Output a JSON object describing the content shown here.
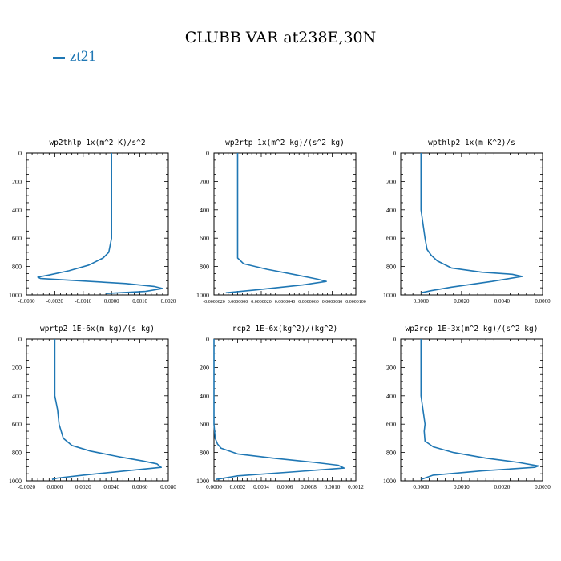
{
  "title": "CLUBB VAR at238E,30N",
  "legend": {
    "label": "zt21",
    "color": "#1f77b4"
  },
  "chart_data": [
    {
      "type": "line",
      "title": "wp2thlp  1x(m^2 K)/s^2",
      "xlim": [
        -0.003,
        0.002
      ],
      "ylim": [
        1000,
        0
      ],
      "xticks": [
        -0.003,
        -0.002,
        -0.001,
        0.0,
        0.001,
        0.002
      ],
      "xticklabels": [
        "-0.0030",
        "-0.0020",
        "-0.0010",
        "0.0000",
        "0.0010",
        "0.0020"
      ],
      "yticks": [
        0,
        200,
        400,
        600,
        800,
        1000
      ],
      "yticklabels": [
        "0",
        "200",
        "400",
        "600",
        "800",
        "1000"
      ],
      "series": [
        {
          "name": "zt21",
          "x": [
            0.0,
            0.0,
            0.0,
            0.0,
            0.0,
            -0.0001,
            -0.0003,
            -0.0008,
            -0.0015,
            -0.0022,
            -0.0026,
            -0.0025,
            0.0005,
            0.0015,
            0.0018,
            0.0012,
            -0.0002
          ],
          "y": [
            0,
            200,
            400,
            500,
            600,
            700,
            740,
            790,
            830,
            860,
            875,
            885,
            920,
            940,
            955,
            975,
            990
          ]
        }
      ]
    },
    {
      "type": "line",
      "title": "wp2rtp  1x(m^2 kg)/(s^2 kg)",
      "xlim": [
        -2e-06,
        1e-05
      ],
      "ylim": [
        1000,
        0
      ],
      "xticks": [
        -2e-06,
        0.0,
        2e-06,
        4e-06,
        6e-06,
        8e-06,
        1e-05
      ],
      "xticklabels": [
        "-0.0000020",
        "0.0000000",
        "0.0000020",
        "0.0000040",
        "0.0000060",
        "0.0000080",
        "0.0000100"
      ],
      "yticks": [
        0,
        200,
        400,
        600,
        800,
        1000
      ],
      "yticklabels": [
        "0",
        "200",
        "400",
        "600",
        "800",
        "1000"
      ],
      "series": [
        {
          "name": "zt21",
          "x": [
            0.0,
            0.0,
            0.0,
            0.0,
            0.0,
            0.0,
            5e-07,
            2.5e-06,
            5e-06,
            6.8e-06,
            7.5e-06,
            5.5e-06,
            1.5e-06,
            -1e-06
          ],
          "y": [
            0,
            200,
            400,
            600,
            700,
            740,
            780,
            820,
            860,
            890,
            905,
            930,
            965,
            985
          ]
        }
      ]
    },
    {
      "type": "line",
      "title": "wpthlp2  1x(m K^2)/s",
      "xlim": [
        -0.001,
        0.006
      ],
      "ylim": [
        1000,
        0
      ],
      "xticks": [
        0.0,
        0.002,
        0.004,
        0.006
      ],
      "xticklabels": [
        "0.0000",
        "0.0020",
        "0.0040",
        "0.0060"
      ],
      "yticks": [
        0,
        200,
        400,
        600,
        800,
        1000
      ],
      "yticklabels": [
        "0",
        "200",
        "400",
        "600",
        "800",
        "1000"
      ],
      "series": [
        {
          "name": "zt21",
          "x": [
            0.0,
            0.0,
            0.0,
            0.0001,
            0.0002,
            0.0003,
            0.0005,
            0.0008,
            0.0015,
            0.003,
            0.0045,
            0.005,
            0.0035,
            0.0015,
            0.0005,
            0.0
          ],
          "y": [
            0,
            200,
            400,
            500,
            600,
            680,
            720,
            760,
            810,
            840,
            855,
            870,
            905,
            945,
            970,
            985
          ]
        }
      ]
    },
    {
      "type": "line",
      "title": "wprtp2  1E-6x(m kg)/(s kg)",
      "xlim": [
        -0.002,
        0.008
      ],
      "ylim": [
        1000,
        0
      ],
      "xticks": [
        -0.002,
        0.0,
        0.002,
        0.004,
        0.006,
        0.008
      ],
      "xticklabels": [
        "-0.0020",
        "0.0000",
        "0.0020",
        "0.0040",
        "0.0060",
        "0.0080"
      ],
      "yticks": [
        0,
        200,
        400,
        600,
        800,
        1000
      ],
      "yticklabels": [
        "0",
        "200",
        "400",
        "600",
        "800",
        "1000"
      ],
      "series": [
        {
          "name": "zt21",
          "x": [
            0.0,
            0.0,
            0.0,
            0.0002,
            0.0003,
            0.0006,
            0.0012,
            0.0025,
            0.0045,
            0.0062,
            0.0072,
            0.0075,
            0.005,
            0.002,
            0.0002,
            -0.0002
          ],
          "y": [
            0,
            200,
            400,
            500,
            600,
            700,
            750,
            790,
            830,
            860,
            880,
            905,
            930,
            960,
            980,
            990
          ]
        }
      ]
    },
    {
      "type": "line",
      "title": "rcp2  1E-6x(kg^2)/(kg^2)",
      "xlim": [
        0.0,
        0.0012
      ],
      "ylim": [
        1000,
        0
      ],
      "xticks": [
        0.0,
        0.0002,
        0.0004,
        0.0006,
        0.0008,
        0.001,
        0.0012
      ],
      "xticklabels": [
        "0.0000",
        "0.0002",
        "0.0004",
        "0.0006",
        "0.0008",
        "0.0010",
        "0.0012"
      ],
      "yticks": [
        0,
        200,
        400,
        600,
        800,
        1000
      ],
      "yticklabels": [
        "0",
        "200",
        "400",
        "600",
        "800",
        "1000"
      ],
      "series": [
        {
          "name": "zt21",
          "x": [
            0.0,
            0.0,
            0.0,
            1e-05,
            3e-05,
            6e-05,
            0.0002,
            0.0005,
            0.00085,
            0.00105,
            0.0011,
            0.0007,
            0.0002,
            2e-05
          ],
          "y": [
            0,
            400,
            600,
            700,
            740,
            770,
            810,
            840,
            870,
            890,
            910,
            935,
            965,
            990
          ]
        }
      ]
    },
    {
      "type": "line",
      "title": "wp2rcp  1E-3x(m^2 kg)/(s^2 kg)",
      "xlim": [
        -0.0005,
        0.003
      ],
      "ylim": [
        1000,
        0
      ],
      "xticks": [
        0.0,
        0.001,
        0.002,
        0.003
      ],
      "xticklabels": [
        "0.0000",
        "0.0010",
        "0.0020",
        "0.0030"
      ],
      "yticks": [
        0,
        200,
        400,
        600,
        800,
        1000
      ],
      "yticklabels": [
        "0",
        "200",
        "400",
        "600",
        "800",
        "1000"
      ],
      "series": [
        {
          "name": "zt21",
          "x": [
            0.0,
            0.0,
            0.0,
            5e-05,
            0.0001,
            8e-05,
            0.0001,
            0.0003,
            0.0008,
            0.0016,
            0.0024,
            0.0029,
            0.0028,
            0.0015,
            0.0003,
            0.0
          ],
          "y": [
            0,
            200,
            400,
            500,
            600,
            650,
            720,
            760,
            800,
            840,
            870,
            895,
            905,
            930,
            960,
            990
          ]
        }
      ]
    }
  ]
}
